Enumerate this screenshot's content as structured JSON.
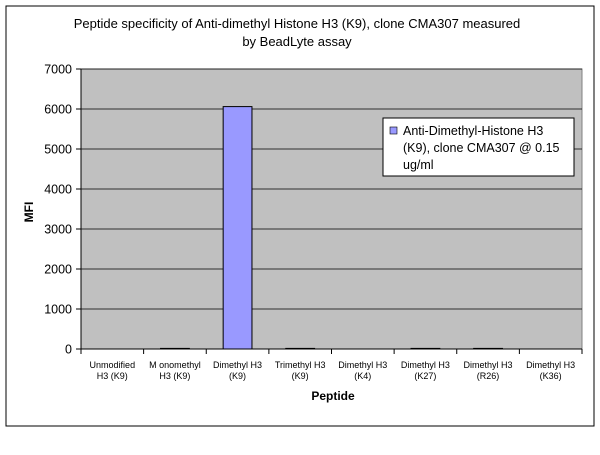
{
  "chart_data": {
    "type": "bar",
    "title_lines": [
      "Peptide specificity of Anti-dimethyl Histone H3 (K9), clone CMA307 measured",
      "by BeadLyte assay"
    ],
    "xlabel": "Peptide",
    "ylabel": "MFI",
    "ylim": [
      0,
      7000
    ],
    "yticks": [
      "0",
      "1000",
      "2000",
      "3000",
      "4000",
      "5000",
      "6000",
      "7000"
    ],
    "grid": true,
    "legend_position": "right",
    "categories": [
      [
        "Unmodified",
        "H3 (K9)"
      ],
      [
        "M onomethyl",
        "H3 (K9)"
      ],
      [
        "Dimethyl H3",
        "(K9)"
      ],
      [
        "Trimethyl H3",
        "(K9)"
      ],
      [
        "Dimethyl H3",
        "(K4)"
      ],
      [
        "Dimethyl H3",
        "(K27)"
      ],
      [
        "Dimethyl H3",
        "(R26)"
      ],
      [
        "Dimethyl H3",
        "(K36)"
      ]
    ],
    "series": [
      {
        "legend_lines": [
          "Anti-Dimethyl-Histone H3",
          "(K9), clone CMA307 @ 0.15",
          "ug/ml"
        ],
        "color": "#9999ff",
        "values": [
          0,
          15,
          6060,
          15,
          0,
          15,
          15,
          0
        ]
      }
    ],
    "plot_background": "#c0c0c0"
  }
}
